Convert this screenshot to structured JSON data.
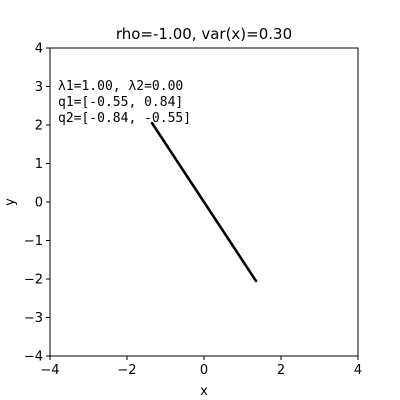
{
  "chart_data": {
    "type": "line",
    "title": "rho=-1.00, var(x)=0.30",
    "xlabel": "x",
    "ylabel": "y",
    "xlim": [
      -4,
      4
    ],
    "ylim": [
      -4,
      4
    ],
    "x_ticks": [
      -4,
      -2,
      0,
      2,
      4
    ],
    "y_ticks": [
      -4,
      -3,
      -2,
      -1,
      0,
      1,
      2,
      3,
      4
    ],
    "x_tick_labels": [
      "−4",
      "−2",
      "0",
      "2",
      "4"
    ],
    "y_tick_labels": [
      "−4",
      "−3",
      "−2",
      "−1",
      "0",
      "1",
      "2",
      "3",
      "4"
    ],
    "grid": false,
    "series": [
      {
        "x": [
          -1.35,
          1.35
        ],
        "y": [
          2.05,
          -2.05
        ],
        "color": "#000000"
      }
    ],
    "annotations": [
      "λ1=1.00, λ2=0.00",
      "q1=[-0.55, 0.84]",
      "q2=[-0.84, -0.55]"
    ]
  }
}
